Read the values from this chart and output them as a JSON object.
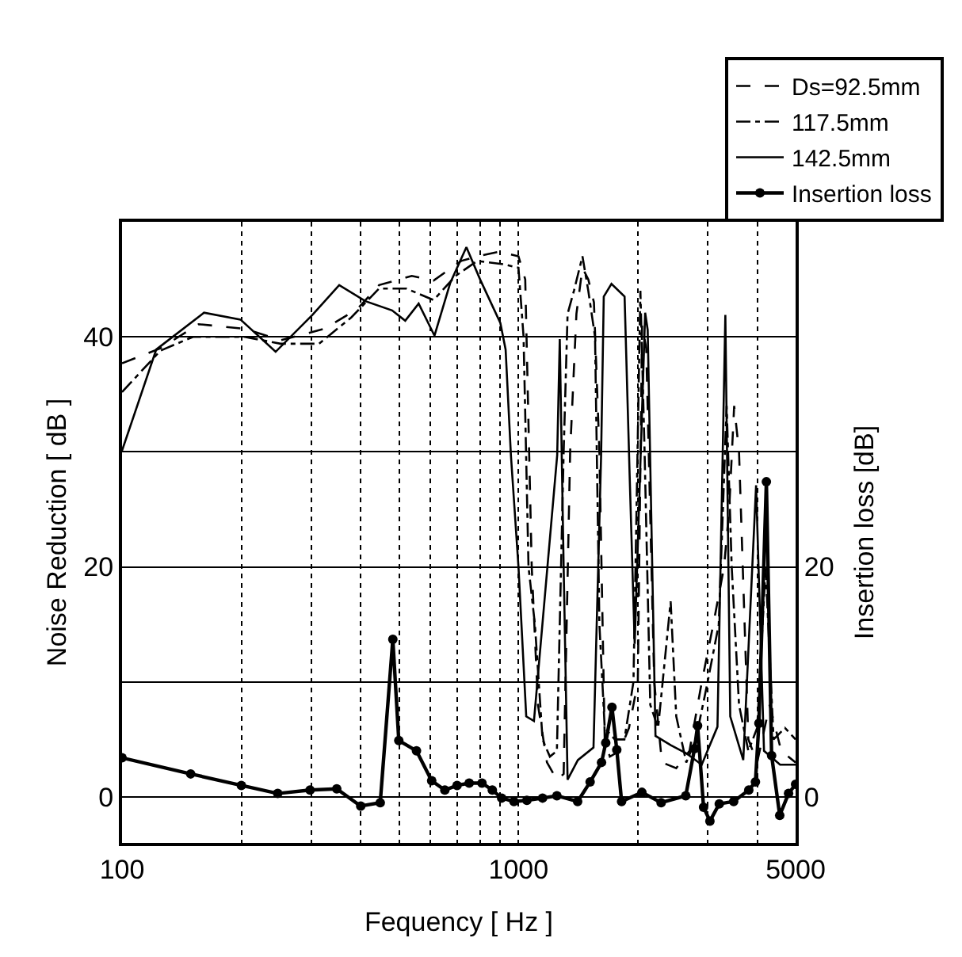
{
  "chart_data": {
    "type": "line",
    "xlabel": "Fequency [ Hz ]",
    "ylabel": "Noise Reduction [ dB ]",
    "y2label": "Insertion loss [dB]",
    "log": "x",
    "grid": true,
    "legend": "top right",
    "xlim": [
      100,
      5000
    ],
    "xticks": [
      100,
      {
        "value": 200,
        "label": null
      },
      {
        "value": 300,
        "label": null
      },
      {
        "value": 400,
        "label": null
      },
      {
        "value": 500,
        "label": null
      },
      {
        "value": 600,
        "label": null
      },
      {
        "value": 700,
        "label": null
      },
      {
        "value": 800,
        "label": null
      },
      {
        "value": 900,
        "label": null
      },
      1000,
      {
        "value": 2000,
        "label": null
      },
      {
        "value": 3000,
        "label": null
      },
      {
        "value": 4000,
        "label": null
      },
      5000
    ],
    "ylim": [
      -4,
      50
    ],
    "yticks": [
      0,
      {
        "value": 10,
        "label": null
      },
      20,
      {
        "value": 30,
        "label": null
      },
      40
    ],
    "y2lim": [
      -4,
      50
    ],
    "y2ticks": [
      0,
      20
    ],
    "series": [
      {
        "name": "Ds=92.5mm",
        "color": "#000000",
        "line_style": "dashed",
        "x": [
          100,
          125,
          156,
          204,
          251,
          324,
          392,
          445,
          538,
          611,
          717,
          787,
          894,
          1000,
          1040,
          1080,
          1120,
          1180,
          1250,
          1300,
          1350,
          1400,
          1450,
          1500,
          1550,
          1600,
          1650,
          1700,
          1800,
          1900,
          2000,
          2050,
          2100,
          2200,
          2300,
          2500,
          2700,
          2900,
          3100,
          3300,
          3400,
          3500,
          3600,
          3800,
          4000,
          4300,
          4600,
          5000
        ],
        "values": [
          37.7,
          39.0,
          41.1,
          40.7,
          39.7,
          40.7,
          42.4,
          44.5,
          45.3,
          44.9,
          46.6,
          47.0,
          47.4,
          47.0,
          45,
          20,
          8,
          3,
          1.5,
          2,
          30,
          42,
          46,
          45,
          43,
          30,
          5,
          3.5,
          4,
          6,
          10,
          41,
          39,
          10,
          3,
          2.5,
          4,
          10,
          15,
          20,
          25,
          34,
          30,
          5,
          3,
          8,
          4,
          3
        ]
      },
      {
        "name": "117.5mm",
        "color": "#000000",
        "line_style": "dashdot",
        "x": [
          100,
          125,
          151,
          204,
          251,
          314,
          379,
          445,
          521,
          611,
          694,
          787,
          922,
          1000,
          1030,
          1060,
          1100,
          1150,
          1200,
          1250,
          1300,
          1330,
          1380,
          1450,
          1500,
          1560,
          1600,
          1650,
          1750,
          1850,
          1950,
          2030,
          2080,
          2150,
          2250,
          2420,
          2500,
          2650,
          2800,
          3000,
          3200,
          3350,
          3450,
          3600,
          3800,
          4000,
          4200,
          4400,
          4700,
          5000
        ],
        "values": [
          35.2,
          38.8,
          40.0,
          40.0,
          39.4,
          39.4,
          41.7,
          44.2,
          44.2,
          43.2,
          45.3,
          46.6,
          46.3,
          46,
          40,
          20,
          15,
          5,
          3.5,
          4,
          30,
          42,
          44,
          47,
          44,
          40,
          15,
          6,
          5,
          5,
          10,
          44,
          30,
          8,
          6,
          17,
          7,
          3,
          5,
          10,
          15,
          34,
          20,
          8,
          4,
          6,
          20,
          5,
          6,
          5
        ]
      },
      {
        "name": "142.5mm",
        "color": "#000000",
        "line_style": "solid",
        "x": [
          100,
          122,
          161,
          199,
          244,
          302,
          353,
          411,
          480,
          518,
          560,
          614,
          673,
          739,
          800,
          900,
          928,
          957,
          1000,
          1046,
          1094,
          1252,
          1271,
          1300,
          1330,
          1412,
          1546,
          1616,
          1641,
          1716,
          1852,
          1907,
          1964,
          2087,
          2118,
          2216,
          2422,
          2649,
          2899,
          3176,
          3325,
          3421,
          3690,
          3975,
          4162,
          4569,
          5000
        ],
        "values": [
          30.1,
          38.9,
          42.1,
          41.5,
          38.7,
          41.9,
          44.5,
          43.1,
          42.3,
          41.4,
          42.9,
          40.1,
          44.7,
          47.8,
          45.0,
          41.2,
          38.9,
          29.7,
          20,
          7.0,
          6.6,
          29.7,
          39.8,
          20,
          1.5,
          3.2,
          4.3,
          29.7,
          43.5,
          44.6,
          43.5,
          28,
          13.3,
          42.1,
          40.6,
          5.3,
          4.5,
          3.8,
          2.8,
          6.1,
          41.9,
          7.0,
          3.2,
          27.1,
          4.0,
          2.8,
          2.8
        ]
      },
      {
        "name": "Insertion loss",
        "color": "#000000",
        "line_style": "solid",
        "marker": "circle",
        "axis": "y2",
        "x": [
          100,
          149,
          200,
          247,
          298,
          348,
          400,
          448,
          482,
          499,
          553,
          604,
          652,
          700,
          751,
          809,
          859,
          907,
          974,
          1050,
          1150,
          1250,
          1410,
          1516,
          1620,
          1660,
          1721,
          1770,
          1820,
          2048,
          2290,
          2642,
          2780,
          2830,
          2930,
          3040,
          3210,
          3490,
          3810,
          3960,
          4040,
          4220,
          4350,
          4560,
          4800,
          5000
        ],
        "values": [
          3.4,
          2.0,
          1.0,
          0.3,
          0.6,
          0.7,
          -0.8,
          -0.5,
          13.7,
          4.9,
          4.0,
          1.4,
          0.6,
          1.0,
          1.2,
          1.2,
          0.6,
          -0.1,
          -0.4,
          -0.3,
          -0.1,
          0.1,
          -0.4,
          1.3,
          3.0,
          4.7,
          7.8,
          4.1,
          -0.4,
          0.4,
          -0.5,
          0.1,
          4.2,
          6.2,
          -0.9,
          -2.1,
          -0.6,
          -0.4,
          0.6,
          1.3,
          6.4,
          27.4,
          3.6,
          -1.6,
          0.3,
          1.1
        ]
      }
    ]
  }
}
